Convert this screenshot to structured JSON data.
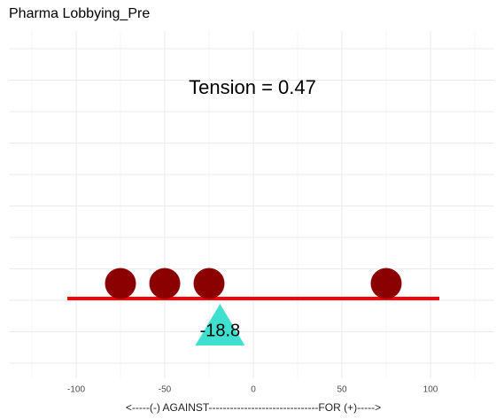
{
  "chart_data": {
    "type": "scatter",
    "title": "Pharma Lobbying_Pre",
    "annotation": "Tension = 0.47",
    "x_label": "<-----(-) AGAINST-------------------------------FOR (+)----->",
    "x": [
      -75,
      -50,
      -25,
      75
    ],
    "color": "#8b0000",
    "beam": {
      "x": [
        -105,
        105
      ],
      "color": "#ff0000"
    },
    "fulcrum": {
      "x": -18.8,
      "color": "#40e0d0"
    },
    "xlim": [
      -138,
      136
    ],
    "xticks": [
      -100,
      -50,
      0,
      50,
      100
    ],
    "grid": true
  }
}
